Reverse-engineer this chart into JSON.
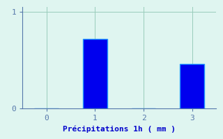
{
  "categories": [
    0,
    1,
    2,
    3
  ],
  "values": [
    0,
    0.72,
    0,
    0.46
  ],
  "bar_color": "#0000ee",
  "bar_edge_color": "#2299ff",
  "background_color": "#dff5f0",
  "grid_color": "#99ccbb",
  "axis_color": "#5577aa",
  "text_color": "#0000cc",
  "xlabel": "Précipitations 1h ( mm )",
  "ylim": [
    0,
    1.05
  ],
  "yticks": [
    0,
    1
  ],
  "xticks": [
    0,
    1,
    2,
    3
  ],
  "xlabel_fontsize": 8,
  "tick_fontsize": 8,
  "bar_width": 0.5
}
